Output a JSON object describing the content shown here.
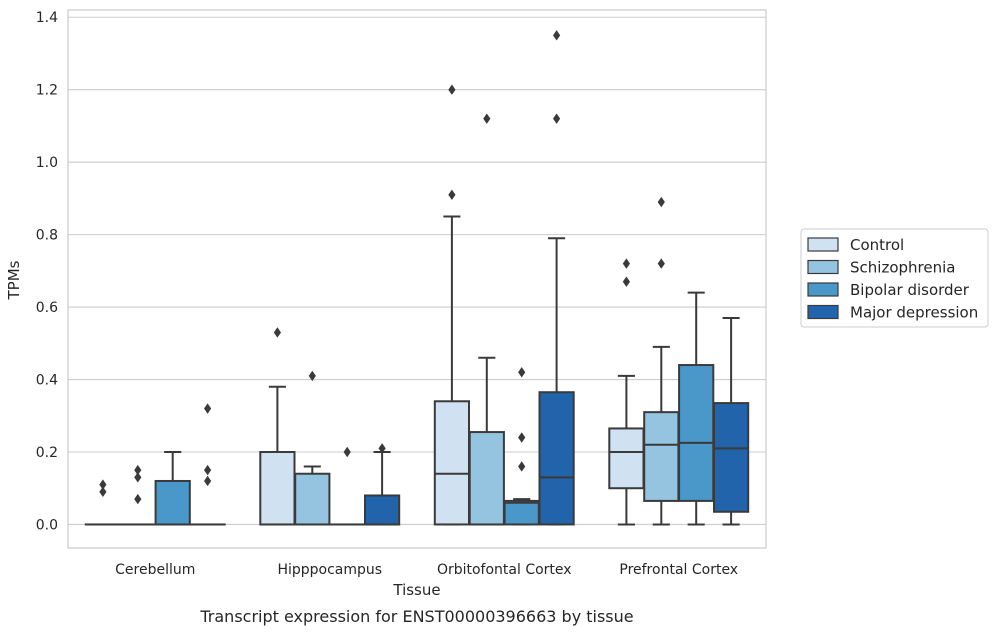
{
  "caption": "Transcript expression for ENST00000396663 by tissue",
  "chart_data": {
    "type": "box",
    "xlabel": "Tissue",
    "ylabel": "TPMs",
    "ylim": [
      -0.065,
      1.42
    ],
    "yticks": [
      "0.0",
      "0.2",
      "0.4",
      "0.6",
      "0.8",
      "1.0",
      "1.2",
      "1.4"
    ],
    "grid": "horizontal",
    "legend_position": "right",
    "categories": [
      "Cerebellum",
      "Hipppocampus",
      "Orbitofontal Cortex",
      "Prefrontal Cortex"
    ],
    "series": [
      {
        "name": "Control",
        "color": "#d0e1f2",
        "boxes": [
          {
            "whislo": 0,
            "q1": 0,
            "med": 0,
            "q3": 0,
            "whishi": 0,
            "fliers": [
              0.09,
              0.11
            ]
          },
          {
            "whislo": 0,
            "q1": 0,
            "med": 0,
            "q3": 0.2,
            "whishi": 0.38,
            "fliers": [
              0.53
            ]
          },
          {
            "whislo": 0,
            "q1": 0,
            "med": 0.14,
            "q3": 0.34,
            "whishi": 0.85,
            "fliers": [
              0.91,
              1.2
            ]
          },
          {
            "whislo": 0,
            "q1": 0.1,
            "med": 0.2,
            "q3": 0.265,
            "whishi": 0.41,
            "fliers": [
              0.67,
              0.72
            ]
          }
        ]
      },
      {
        "name": "Schizophrenia",
        "color": "#94c4df",
        "boxes": [
          {
            "whislo": 0,
            "q1": 0,
            "med": 0,
            "q3": 0,
            "whishi": 0,
            "fliers": [
              0.07,
              0.13,
              0.15
            ]
          },
          {
            "whislo": 0,
            "q1": 0,
            "med": 0,
            "q3": 0.14,
            "whishi": 0.16,
            "fliers": [
              0.41
            ]
          },
          {
            "whislo": 0,
            "q1": 0,
            "med": 0,
            "q3": 0.255,
            "whishi": 0.46,
            "fliers": [
              1.12
            ]
          },
          {
            "whislo": 0,
            "q1": 0.065,
            "med": 0.22,
            "q3": 0.31,
            "whishi": 0.49,
            "fliers": [
              0.72,
              0.89
            ]
          }
        ]
      },
      {
        "name": "Bipolar disorder",
        "color": "#4a98c9",
        "boxes": [
          {
            "whislo": 0,
            "q1": 0,
            "med": 0,
            "q3": 0.12,
            "whishi": 0.2,
            "fliers": []
          },
          {
            "whislo": 0,
            "q1": 0,
            "med": 0,
            "q3": 0,
            "whishi": 0,
            "fliers": [
              0.2
            ]
          },
          {
            "whislo": 0,
            "q1": 0,
            "med": 0.06,
            "q3": 0.065,
            "whishi": 0.07,
            "fliers": [
              0.16,
              0.24,
              0.42
            ]
          },
          {
            "whislo": 0,
            "q1": 0.065,
            "med": 0.225,
            "q3": 0.44,
            "whishi": 0.64,
            "fliers": []
          }
        ]
      },
      {
        "name": "Major depression",
        "color": "#2164ab",
        "boxes": [
          {
            "whislo": 0,
            "q1": 0,
            "med": 0,
            "q3": 0,
            "whishi": 0,
            "fliers": [
              0.12,
              0.15,
              0.32
            ]
          },
          {
            "whislo": 0,
            "q1": 0,
            "med": 0,
            "q3": 0.08,
            "whishi": 0.2,
            "fliers": [
              0.21
            ]
          },
          {
            "whislo": 0,
            "q1": 0,
            "med": 0.13,
            "q3": 0.365,
            "whishi": 0.79,
            "fliers": [
              1.12,
              1.35
            ]
          },
          {
            "whislo": 0,
            "q1": 0.035,
            "med": 0.21,
            "q3": 0.335,
            "whishi": 0.57,
            "fliers": []
          }
        ]
      }
    ]
  }
}
